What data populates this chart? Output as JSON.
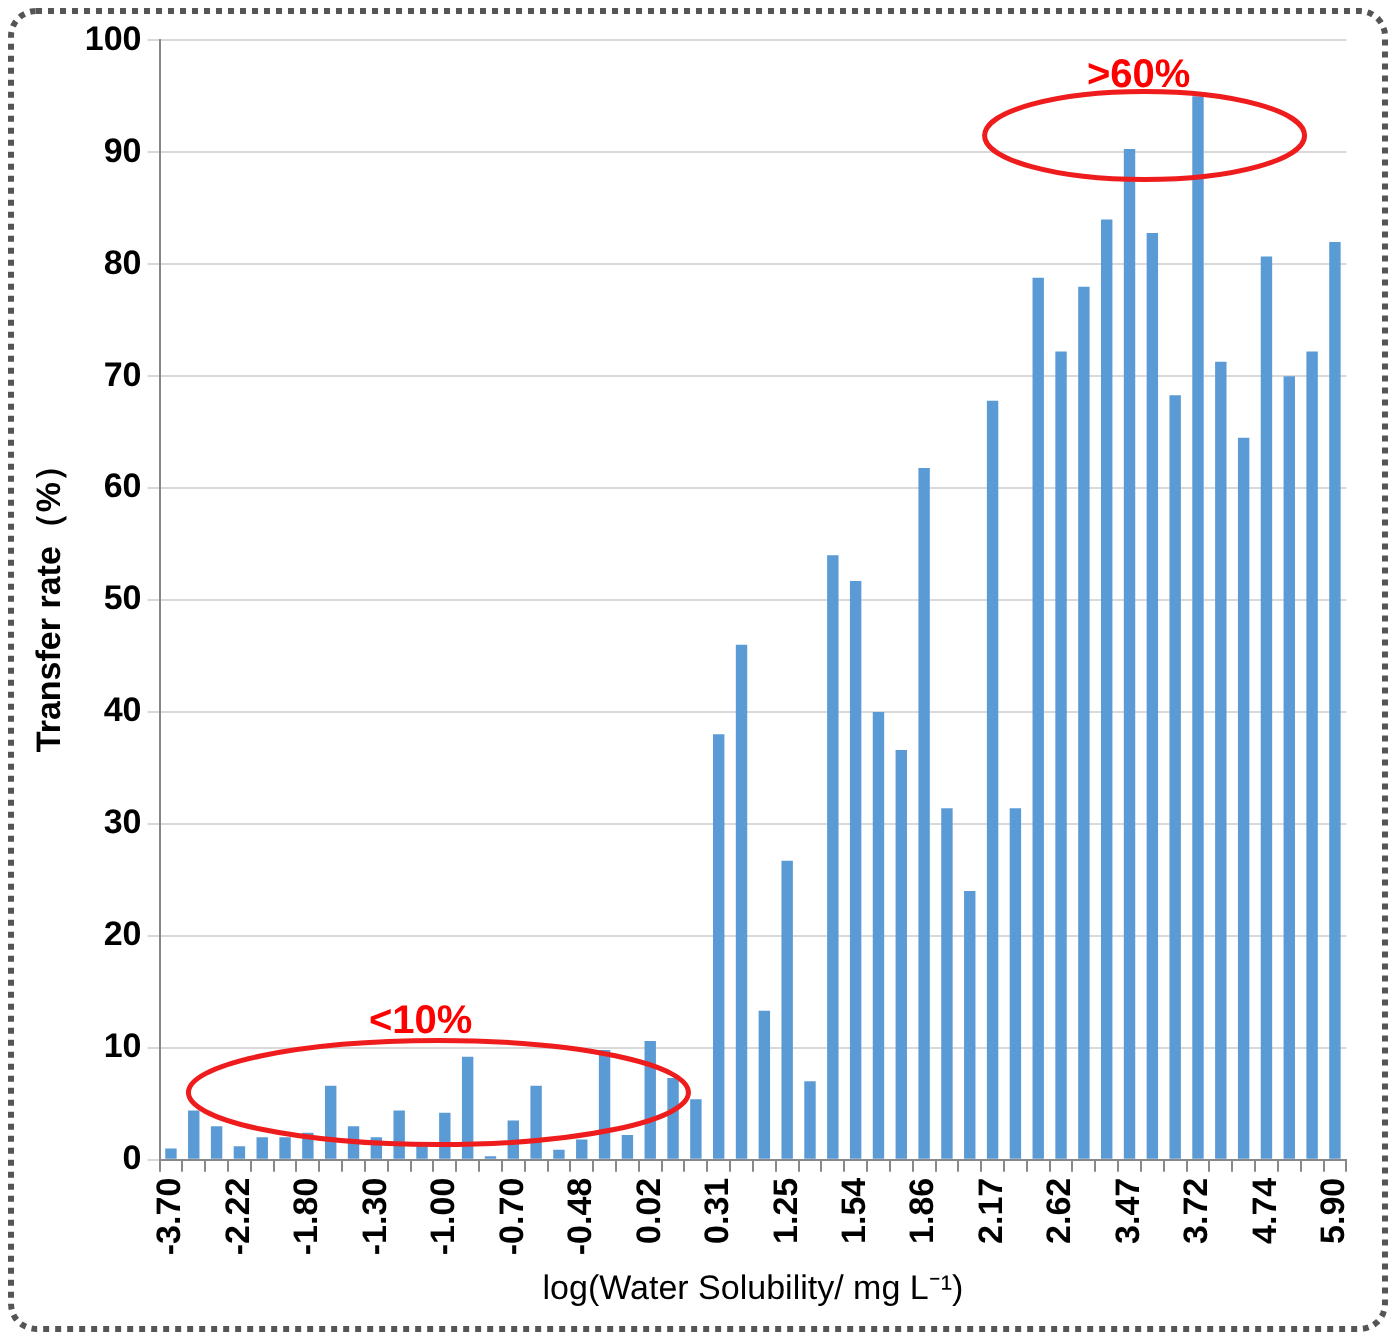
{
  "chart_data": {
    "type": "bar",
    "xlabel": "log(Water Solubility/ mg L⁻¹)",
    "ylabel": "Transfer rate（%）",
    "categories": [
      "-3.70",
      null,
      null,
      "-2.22",
      null,
      null,
      "-1.80",
      null,
      null,
      "-1.30",
      null,
      null,
      "-1.00",
      null,
      null,
      "-0.70",
      null,
      null,
      "-0.48",
      null,
      null,
      "0.02",
      null,
      null,
      "0.31",
      null,
      null,
      "1.25",
      null,
      null,
      "1.54",
      null,
      null,
      "1.86",
      null,
      null,
      "2.17",
      null,
      null,
      "2.62",
      null,
      null,
      "3.47",
      null,
      null,
      "3.72",
      null,
      null,
      "4.74",
      null,
      null,
      "5.90"
    ],
    "values": [
      1,
      4.4,
      3,
      1.2,
      2,
      2,
      2.4,
      6.6,
      3,
      2,
      4.4,
      1.5,
      4.2,
      9.2,
      0.3,
      3.5,
      6.6,
      0.9,
      1.8,
      9.8,
      2.2,
      10.6,
      7.3,
      5.4,
      38,
      46,
      13.3,
      26.7,
      7,
      54,
      51.7,
      40,
      36.6,
      61.8,
      31.4,
      24,
      67.8,
      31.4,
      78.8,
      72.2,
      78,
      84,
      90.3,
      82.8,
      68.3,
      95,
      71.3,
      64.5,
      80.7,
      70,
      72.2,
      82
    ],
    "color": "#5b9bd5",
    "ylim": [
      0,
      100
    ],
    "yticks": [
      0,
      10,
      20,
      30,
      40,
      50,
      60,
      70,
      80,
      90,
      100
    ],
    "grid": "y",
    "annotations": [
      "<10%",
      ">60%"
    ]
  }
}
